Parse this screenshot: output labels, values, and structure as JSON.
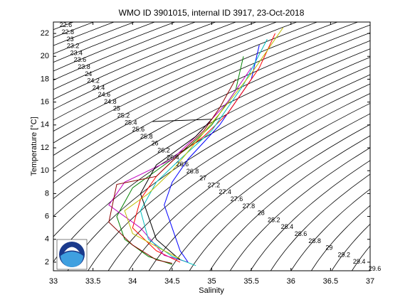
{
  "chart_data": {
    "type": "ts-diagram",
    "title": "WMO ID 3901015, internal ID 3917, 23-Oct-2018",
    "xlabel": "Salinity",
    "ylabel": "Temperature [°C]",
    "xlim": [
      33,
      37
    ],
    "ylim": [
      1.25,
      23
    ],
    "xticks": [
      33,
      33.5,
      34,
      34.5,
      35,
      35.5,
      36,
      36.5,
      37
    ],
    "yticks": [
      2,
      4,
      6,
      8,
      10,
      12,
      14,
      16,
      18,
      20,
      22
    ],
    "isopycnals": [
      22.6,
      22.8,
      23,
      23.2,
      23.4,
      23.6,
      23.8,
      24,
      24.2,
      24.4,
      24.6,
      24.8,
      25,
      25.2,
      25.4,
      25.6,
      25.8,
      26,
      26.2,
      26.4,
      26.6,
      26.8,
      27,
      27.2,
      27.4,
      27.6,
      27.8,
      28,
      28.2,
      28.4,
      28.6,
      28.8,
      29,
      29.2,
      29.4,
      29.6
    ],
    "series": [
      {
        "color": "#0000ff",
        "x": [
          35.6,
          35.5,
          35.3,
          35.1,
          34.9,
          34.7,
          34.5,
          34.4,
          34.5,
          34.6,
          34.7
        ],
        "values": [
          21,
          18,
          16,
          14,
          12.5,
          11,
          9,
          7,
          5,
          3,
          2
        ]
      },
      {
        "color": "#ff0000",
        "x": [
          35.8,
          35.6,
          35.2,
          34.9,
          34.6,
          34.3,
          34.1,
          34.0,
          34.3,
          34.6
        ],
        "values": [
          22,
          19,
          15,
          13,
          11.5,
          9.5,
          7.5,
          5,
          3,
          2
        ]
      },
      {
        "color": "#008000",
        "x": [
          35.4,
          35.3,
          35.0,
          34.7,
          34.4,
          34.0,
          33.8,
          33.9,
          34.2,
          34.5
        ],
        "values": [
          20,
          17,
          14,
          12,
          10.5,
          8.5,
          6,
          4,
          2.5,
          1.8
        ]
      },
      {
        "color": "#bf00bf",
        "x": [
          35.5,
          35.2,
          34.8,
          34.5,
          34.2,
          33.9,
          33.7,
          34.1,
          34.4,
          34.7
        ],
        "values": [
          19,
          16,
          13,
          11,
          10,
          9,
          7,
          5,
          2.6,
          2
        ]
      },
      {
        "color": "#00bfbf",
        "x": [
          35.7,
          35.4,
          35.0,
          34.6,
          34.3,
          34.1,
          34.2,
          34.5,
          34.8
        ],
        "values": [
          21.5,
          17.5,
          13.5,
          11,
          9,
          6.5,
          4,
          2.5,
          1.7
        ]
      },
      {
        "color": "#000000",
        "x": [
          34.25,
          35.0,
          34.8,
          34.6,
          34.3,
          34.1,
          34.3,
          34.6
        ],
        "values": [
          14.3,
          14.5,
          13,
          12,
          10.5,
          8,
          4,
          2.2
        ]
      },
      {
        "color": "#bfbf00",
        "x": [
          35.9,
          35.5,
          35.1,
          34.8,
          34.5,
          34.2,
          33.9,
          34.0,
          34.4,
          34.6
        ],
        "values": [
          22.5,
          18.5,
          15,
          12.5,
          10,
          8,
          6.5,
          4.5,
          3,
          2.3
        ]
      },
      {
        "color": "#8b0000",
        "x": [
          35.3,
          35.1,
          34.9,
          34.6,
          34.3,
          33.8,
          33.7,
          34.0,
          34.3,
          34.5
        ],
        "values": [
          18,
          15.5,
          13.5,
          11.5,
          9.5,
          8.8,
          5.5,
          3.5,
          2.2,
          1.9
        ]
      }
    ]
  }
}
